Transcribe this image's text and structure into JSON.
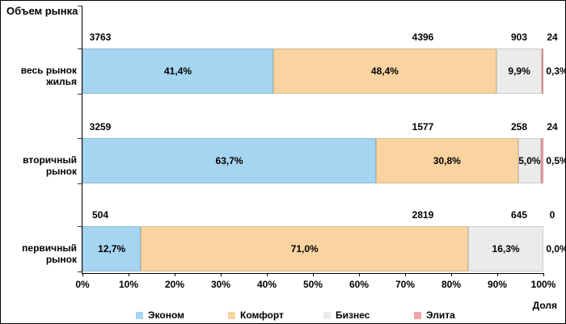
{
  "title": "Объем рынка",
  "x_axis_note": "Доля",
  "x_ticks": [
    "0%",
    "10%",
    "20%",
    "30%",
    "40%",
    "50%",
    "60%",
    "70%",
    "80%",
    "90%",
    "100%"
  ],
  "chart_data": {
    "type": "bar",
    "orientation": "horizontal",
    "stacked": true,
    "title": "Объем рынка",
    "xlabel": "Доля",
    "xlim": [
      0,
      100
    ],
    "grid": false,
    "legend_position": "bottom",
    "categories": [
      "весь рынок жилья",
      "вторичный рынок",
      "первичный рынок"
    ],
    "series": [
      {
        "name": "Эконом",
        "key": "economy",
        "color": "#A5D5F0",
        "values": [
          "3763",
          "3259",
          "504"
        ],
        "shares_pct": [
          41.4,
          63.7,
          12.7
        ],
        "share_labels": [
          "41,4%",
          "63,7%",
          "12,7%"
        ]
      },
      {
        "name": "Комфорт",
        "key": "comfort",
        "color": "#FAD4A0",
        "values": [
          "4396",
          "1577",
          "2819"
        ],
        "shares_pct": [
          48.4,
          30.8,
          71.0
        ],
        "share_labels": [
          "48,4%",
          "30,8%",
          "71,0%"
        ]
      },
      {
        "name": "Бизнес",
        "key": "business",
        "color": "#EBEBEB",
        "values": [
          "903",
          "258",
          "645"
        ],
        "shares_pct": [
          9.9,
          5.0,
          16.3
        ],
        "share_labels": [
          "9,9%",
          "5,0%",
          "16,3%"
        ]
      },
      {
        "name": "Элита",
        "key": "elite",
        "color": "#F5A3A8",
        "values": [
          "24",
          "24",
          "0"
        ],
        "shares_pct": [
          0.3,
          0.5,
          0.0
        ],
        "share_labels": [
          "0,3%",
          "0,5%",
          "0,0%"
        ]
      }
    ]
  }
}
